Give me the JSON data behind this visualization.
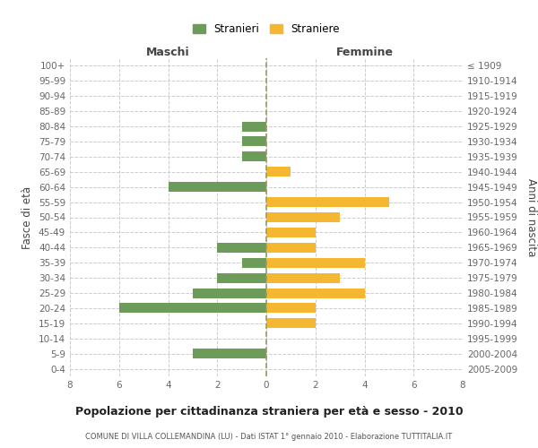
{
  "age_groups": [
    "100+",
    "95-99",
    "90-94",
    "85-89",
    "80-84",
    "75-79",
    "70-74",
    "65-69",
    "60-64",
    "55-59",
    "50-54",
    "45-49",
    "40-44",
    "35-39",
    "30-34",
    "25-29",
    "20-24",
    "15-19",
    "10-14",
    "5-9",
    "0-4"
  ],
  "birth_years": [
    "≤ 1909",
    "1910-1914",
    "1915-1919",
    "1920-1924",
    "1925-1929",
    "1930-1934",
    "1935-1939",
    "1940-1944",
    "1945-1949",
    "1950-1954",
    "1955-1959",
    "1960-1964",
    "1965-1969",
    "1970-1974",
    "1975-1979",
    "1980-1984",
    "1985-1989",
    "1990-1994",
    "1995-1999",
    "2000-2004",
    "2005-2009"
  ],
  "maschi": [
    0,
    0,
    0,
    0,
    1,
    1,
    1,
    0,
    4,
    0,
    0,
    0,
    2,
    1,
    2,
    3,
    6,
    0,
    0,
    3,
    0
  ],
  "femmine": [
    0,
    0,
    0,
    0,
    0,
    0,
    0,
    1,
    0,
    5,
    3,
    2,
    2,
    4,
    3,
    4,
    2,
    2,
    0,
    0,
    0
  ],
  "color_maschi": "#6d9b5a",
  "color_femmine": "#f5b731",
  "title": "Popolazione per cittadinanza straniera per età e sesso - 2010",
  "subtitle": "COMUNE DI VILLA COLLEMANDINA (LU) - Dati ISTAT 1° gennaio 2010 - Elaborazione TUTTITALIA.IT",
  "xlabel_left": "Maschi",
  "xlabel_right": "Femmine",
  "ylabel_left": "Fasce di età",
  "ylabel_right": "Anni di nascita",
  "legend_maschi": "Stranieri",
  "legend_femmine": "Straniere",
  "xlim": 8,
  "background_color": "#ffffff",
  "grid_color": "#cccccc"
}
